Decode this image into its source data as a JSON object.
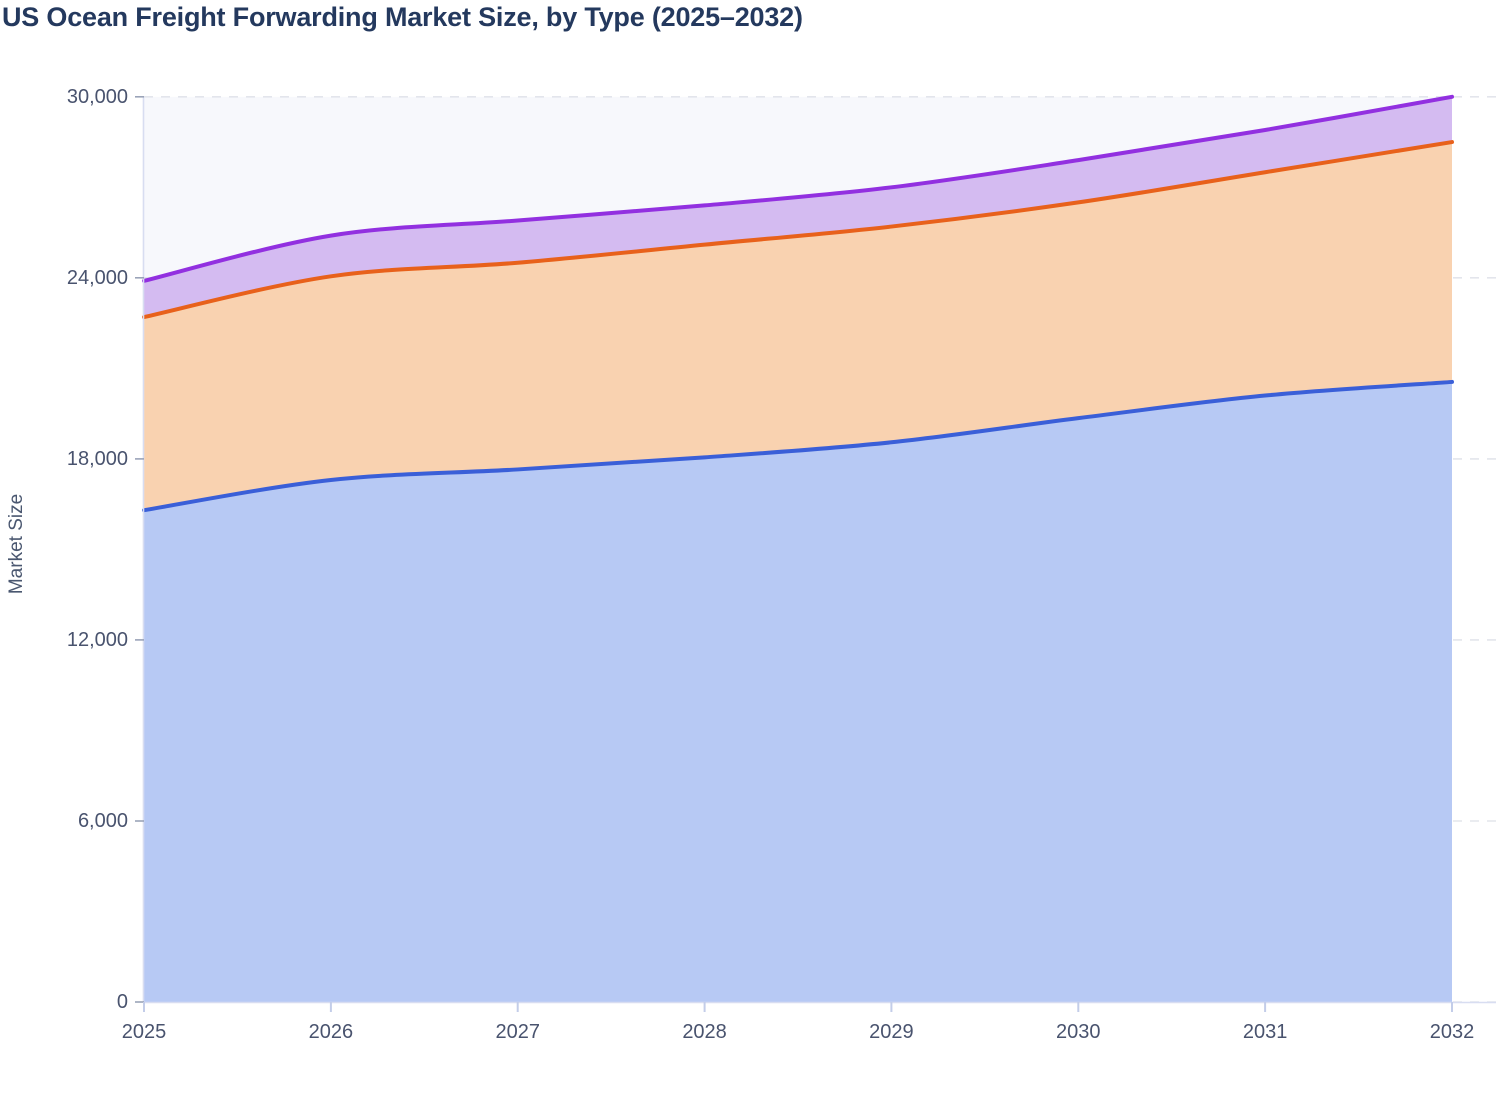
{
  "title": "US Ocean Freight Forwarding Market Size, by Type (2025–2032)",
  "chart": {
    "y_axis": {
      "label": "Market Size",
      "tick_labels": [
        "0",
        "6,000",
        "12,000",
        "18,000",
        "24,000",
        "30,000"
      ],
      "tick_values": [
        0,
        6000,
        12000,
        18000,
        24000,
        30000
      ]
    },
    "x_axis": {
      "tick_labels": [
        "2025",
        "2026",
        "2027",
        "2028",
        "2029",
        "2030",
        "2031",
        "2032"
      ]
    }
  },
  "chart_data": {
    "type": "area",
    "stacked": true,
    "title": "US Ocean Freight Forwarding Market Size, by Type (2025–2032)",
    "xlabel": "",
    "ylabel": "Market Size",
    "x": [
      2025,
      2026,
      2027,
      2028,
      2029,
      2030,
      2031,
      2032
    ],
    "ylim": [
      0,
      30000
    ],
    "grid": "horizontal-dashed",
    "legend_position": "none",
    "series": [
      {
        "name": "blue-bottom-type",
        "line_color": "#3A5FD8",
        "fill_color": "#B7C9F4",
        "values": [
          16300,
          17300,
          17650,
          18050,
          18550,
          19350,
          20100,
          20550
        ]
      },
      {
        "name": "orange-middle-type",
        "line_color": "#E8611B",
        "fill_color": "#F9D2B0",
        "values": [
          6400,
          6750,
          6850,
          7050,
          7150,
          7150,
          7400,
          7950
        ]
      },
      {
        "name": "purple-top-type",
        "line_color": "#9230E0",
        "fill_color": "#D4BBF1",
        "values": [
          1200,
          1350,
          1400,
          1300,
          1300,
          1400,
          1400,
          1500
        ]
      }
    ],
    "cumulative_tops": {
      "blue": [
        16300,
        17300,
        17650,
        18050,
        18550,
        19350,
        20100,
        20550
      ],
      "orange": [
        22700,
        24050,
        24500,
        25100,
        25700,
        26500,
        27500,
        28500
      ],
      "purple": [
        23900,
        25400,
        25900,
        26400,
        27000,
        27900,
        28900,
        30000
      ]
    }
  },
  "colors": {
    "title_text": "#24395E",
    "axis_text": "#49536E",
    "plot_background": "#F7F8FC",
    "gridline": "#E3E5EC",
    "axis_line": "#D8DDF1",
    "y_tick_mark": "#9AA3B8",
    "x_tick_mark": "#C3CDE9",
    "blue_line": "#3A5FD8",
    "blue_fill": "#B7C9F4",
    "orange_line": "#E8611B",
    "orange_fill": "#F9D2B0",
    "purple_line": "#9230E0",
    "purple_fill": "#D4BBF1"
  }
}
